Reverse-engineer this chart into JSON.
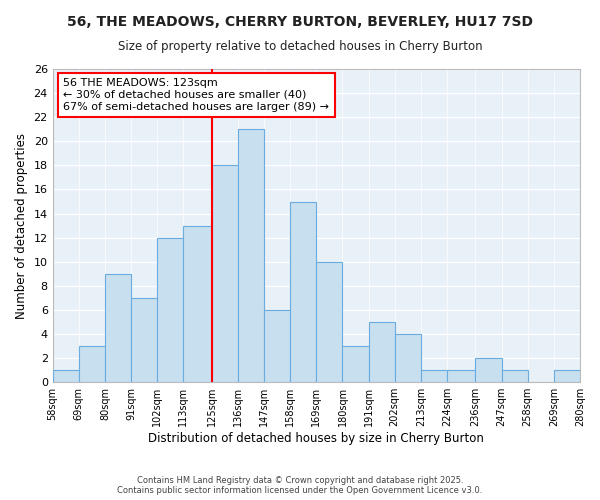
{
  "title": "56, THE MEADOWS, CHERRY BURTON, BEVERLEY, HU17 7SD",
  "subtitle": "Size of property relative to detached houses in Cherry Burton",
  "xlabel": "Distribution of detached houses by size in Cherry Burton",
  "ylabel": "Number of detached properties",
  "bar_color": "#c8dff0",
  "bar_edge_color": "#6aace0",
  "background_color": "#ffffff",
  "plot_bg_color": "#e8f0f8",
  "bins": [
    58,
    69,
    80,
    91,
    102,
    113,
    125,
    136,
    147,
    158,
    169,
    180,
    191,
    202,
    213,
    224,
    236,
    247,
    258,
    269,
    280
  ],
  "bin_labels": [
    "58sqm",
    "69sqm",
    "80sqm",
    "91sqm",
    "102sqm",
    "113sqm",
    "125sqm",
    "136sqm",
    "147sqm",
    "158sqm",
    "169sqm",
    "180sqm",
    "191sqm",
    "202sqm",
    "213sqm",
    "224sqm",
    "236sqm",
    "247sqm",
    "258sqm",
    "269sqm",
    "280sqm"
  ],
  "counts": [
    1,
    3,
    9,
    7,
    12,
    13,
    18,
    21,
    6,
    15,
    10,
    3,
    5,
    4,
    1,
    1,
    2,
    1,
    0,
    1
  ],
  "vline_x": 125,
  "vline_color": "red",
  "ylim": [
    0,
    26
  ],
  "yticks": [
    0,
    2,
    4,
    6,
    8,
    10,
    12,
    14,
    16,
    18,
    20,
    22,
    24,
    26
  ],
  "annotation_title": "56 THE MEADOWS: 123sqm",
  "annotation_line1": "← 30% of detached houses are smaller (40)",
  "annotation_line2": "67% of semi-detached houses are larger (89) →",
  "footer_line1": "Contains HM Land Registry data © Crown copyright and database right 2025.",
  "footer_line2": "Contains public sector information licensed under the Open Government Licence v3.0."
}
